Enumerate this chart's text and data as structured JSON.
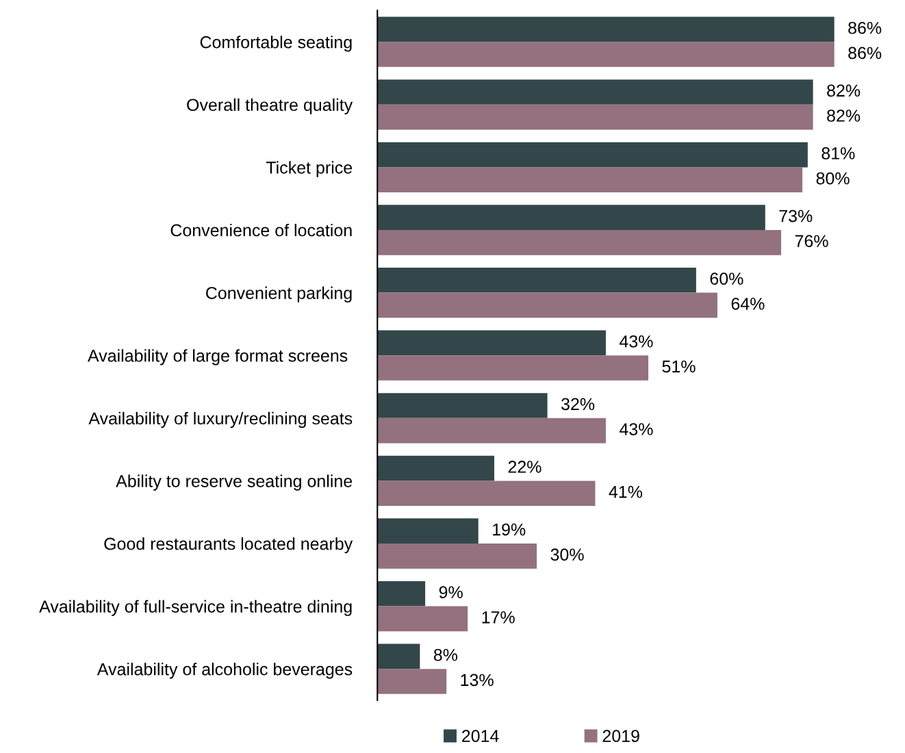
{
  "chart_data": {
    "type": "bar",
    "orientation": "horizontal",
    "legend": "bottom",
    "grid": false,
    "categories": [
      "Comfortable seating",
      "Overall theatre quality",
      "Ticket price",
      "Convenience of location",
      "Convenient parking",
      "Availability of large format screens ",
      "Availability of luxury/reclining seats",
      "Ability to reserve seating online",
      "Good restaurants located nearby",
      "Availability of full-service in-theatre dining",
      "Availability of alcoholic beverages"
    ],
    "series": [
      {
        "name": "2014",
        "color": "#33474a",
        "values": [
          86,
          82,
          81,
          73,
          60,
          43,
          32,
          22,
          19,
          9,
          8
        ],
        "value_labels": [
          "86%",
          "82%",
          "81%",
          "73%",
          "60%",
          "43%",
          "32%",
          "22%",
          "19%",
          "9%",
          "8%"
        ]
      },
      {
        "name": "2019",
        "color": "#94717f",
        "values": [
          86,
          82,
          80,
          76,
          64,
          51,
          43,
          41,
          30,
          17,
          13
        ],
        "value_labels": [
          "86%",
          "82%",
          "80%",
          "76%",
          "64%",
          "51%",
          "43%",
          "41%",
          "30%",
          "17%",
          "13%"
        ]
      }
    ]
  }
}
